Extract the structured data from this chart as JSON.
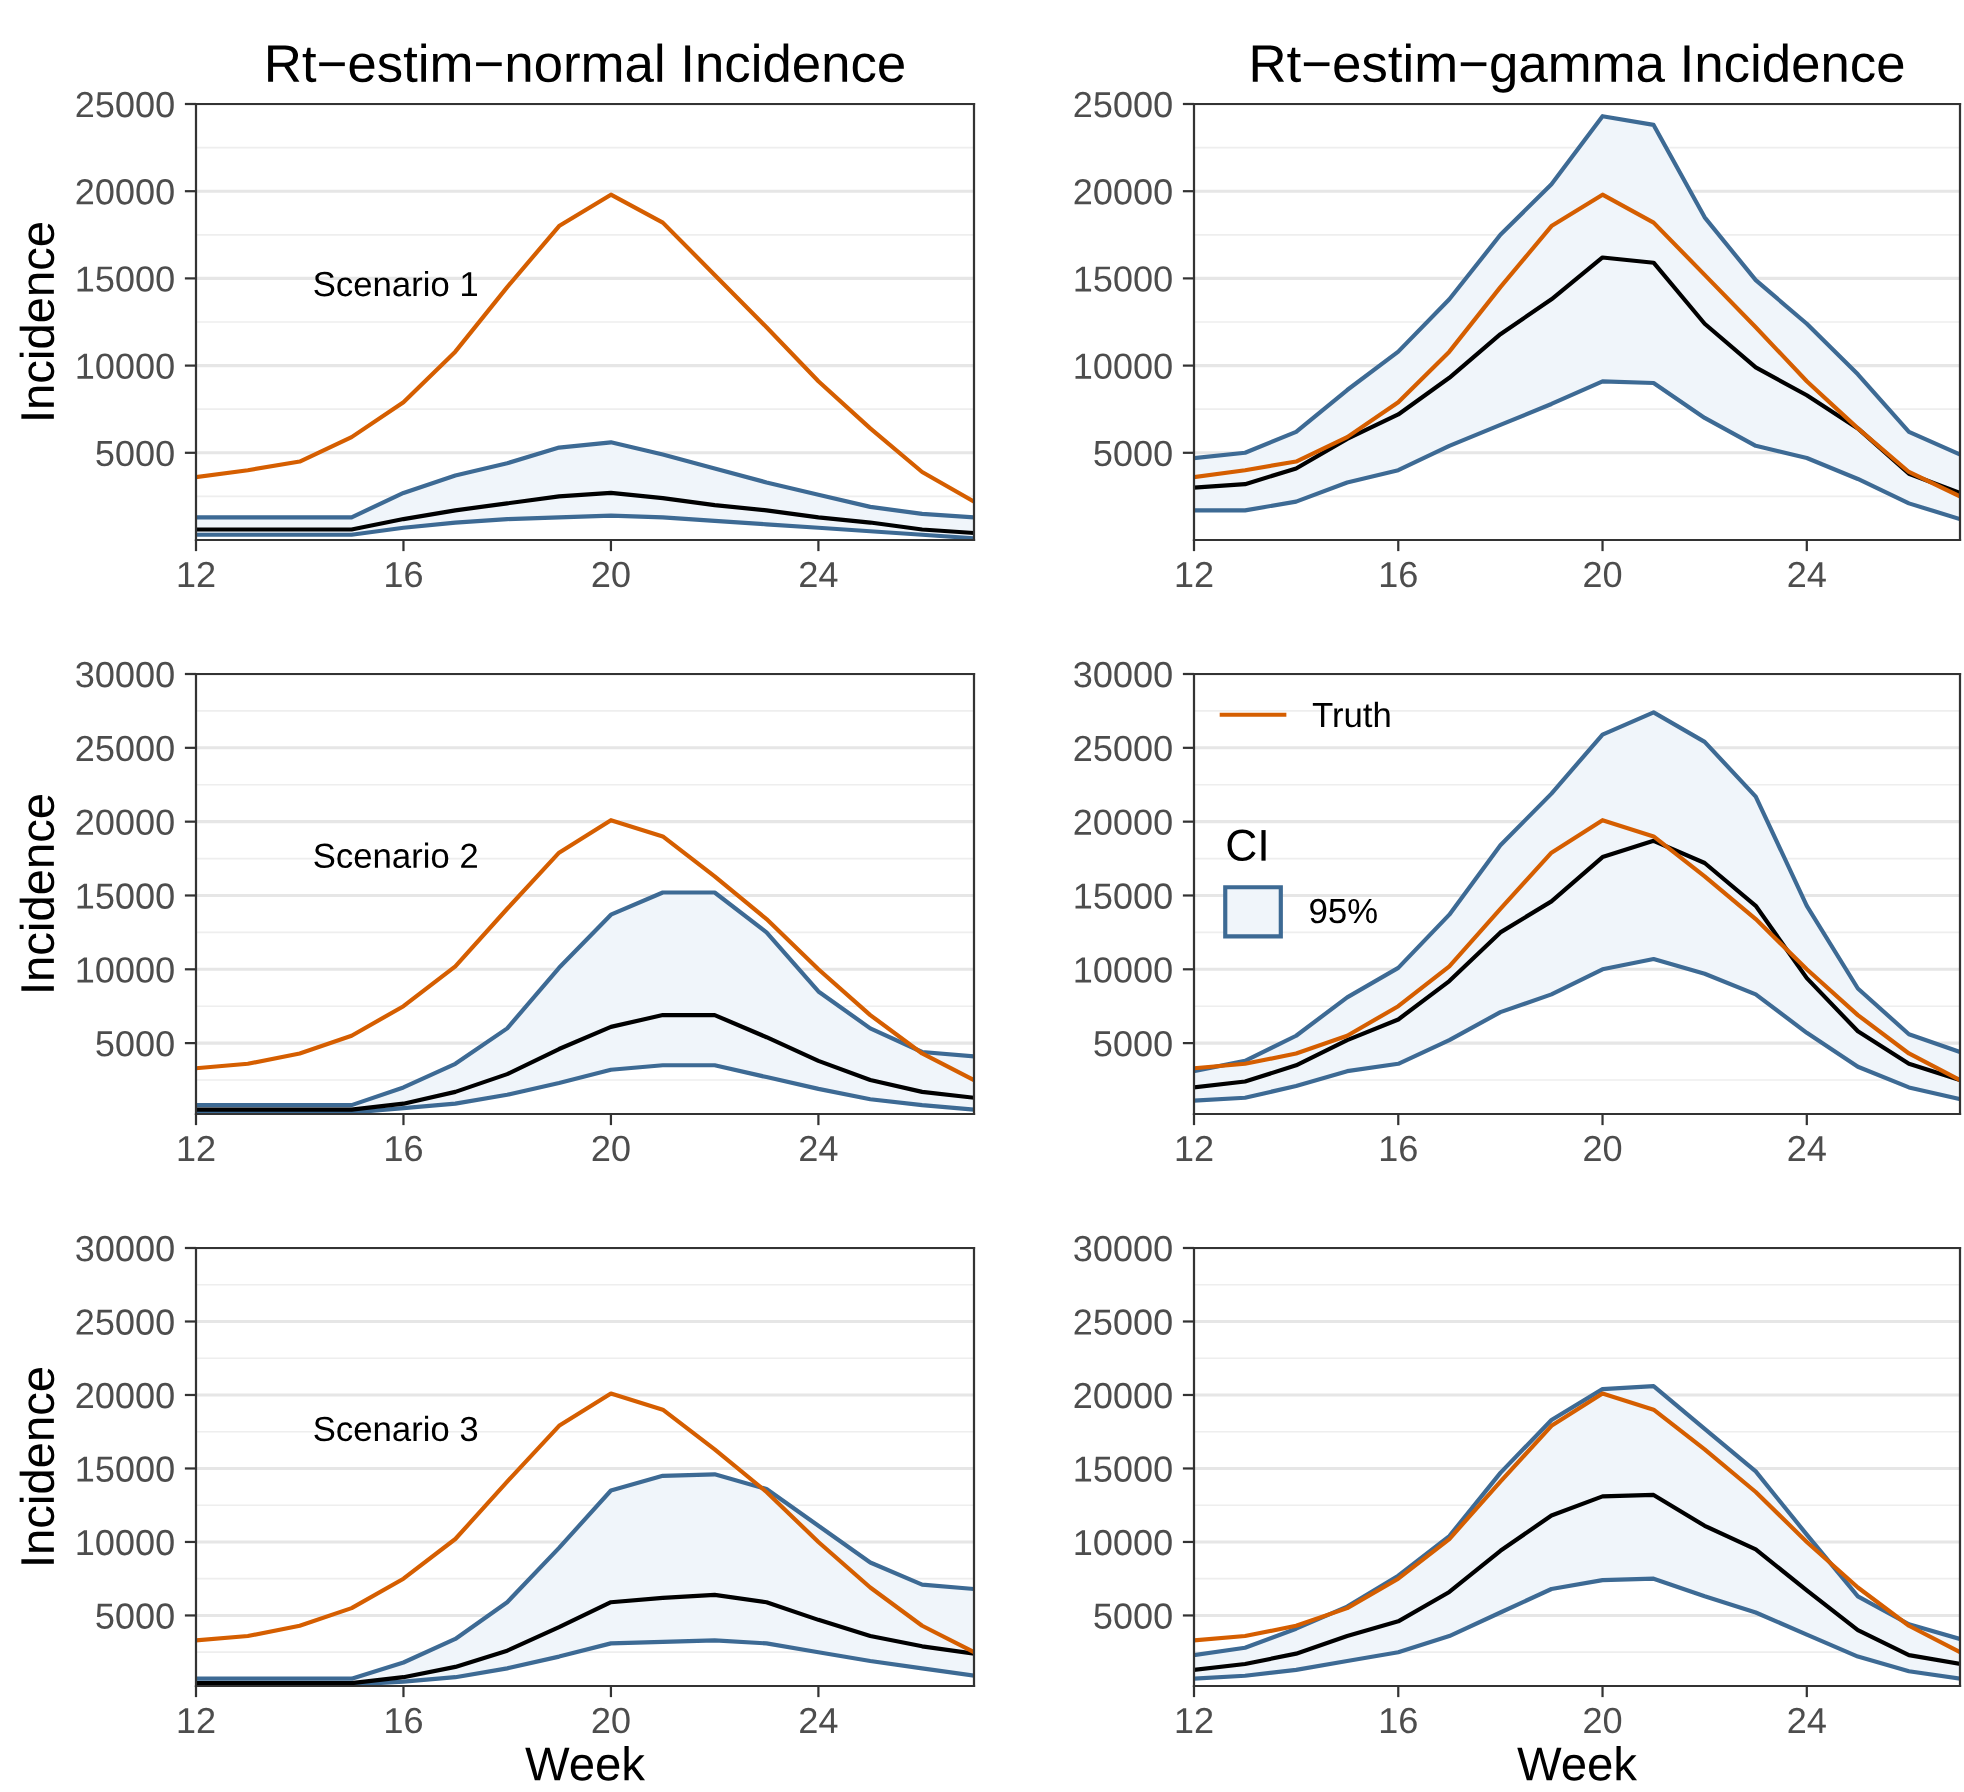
{
  "chart_data": [
    {
      "type": "line",
      "title": "Rt−estim−normal Incidence",
      "ylabel": "Incidence",
      "annotations": [
        "Scenario 1"
      ],
      "x": [
        12,
        13,
        14,
        15,
        16,
        17,
        18,
        19,
        20,
        21,
        22,
        23,
        24,
        25,
        26,
        27
      ],
      "xlim": [
        12,
        27
      ],
      "xticks": [
        12,
        16,
        20,
        24
      ],
      "ylim": [
        0,
        25000
      ],
      "yticks": [
        5000,
        10000,
        15000,
        20000,
        25000
      ],
      "grid": "y",
      "series": [
        {
          "color": "#3d6a94",
          "values": [
            1300,
            1300,
            1300,
            1300,
            2700,
            3700,
            4400,
            5300,
            5600,
            4900,
            4100,
            3300,
            2600,
            1900,
            1500,
            1300
          ]
        },
        {
          "color": "#3d6a94",
          "values": [
            300,
            300,
            300,
            300,
            700,
            1000,
            1200,
            1300,
            1400,
            1300,
            1100,
            900,
            700,
            500,
            300,
            100
          ]
        },
        {
          "color": "#000000",
          "values": [
            600,
            600,
            600,
            600,
            1200,
            1700,
            2100,
            2500,
            2700,
            2400,
            2000,
            1700,
            1300,
            1000,
            600,
            400
          ],
          "lower": [
            300,
            300,
            300,
            300,
            700,
            1000,
            1200,
            1300,
            1400,
            1300,
            1100,
            900,
            700,
            500,
            300,
            100
          ],
          "upper": [
            1300,
            1300,
            1300,
            1300,
            2700,
            3700,
            4400,
            5300,
            5600,
            4900,
            4100,
            3300,
            2600,
            1900,
            1500,
            1300
          ]
        },
        {
          "color": "#d55e00",
          "values": [
            3600,
            4000,
            4500,
            5900,
            7900,
            10800,
            14500,
            18000,
            19800,
            18200,
            15200,
            12200,
            9100,
            6400,
            3900,
            2200
          ]
        }
      ]
    },
    {
      "type": "line",
      "title": "Rt−estim−gamma Incidence",
      "x": [
        12,
        13,
        14,
        15,
        16,
        17,
        18,
        19,
        20,
        21,
        22,
        23,
        24,
        25,
        26,
        27
      ],
      "xlim": [
        12,
        27
      ],
      "xticks": [
        12,
        16,
        20,
        24
      ],
      "ylim": [
        0,
        25000
      ],
      "yticks": [
        5000,
        10000,
        15000,
        20000,
        25000
      ],
      "grid": "y",
      "series": [
        {
          "color": "#3d6a94",
          "values": [
            4700,
            5000,
            6200,
            8600,
            10800,
            13800,
            17500,
            20400,
            24300,
            23800,
            18500,
            14900,
            12400,
            9500,
            6200,
            4900
          ]
        },
        {
          "color": "#3d6a94",
          "values": [
            1700,
            1700,
            2200,
            3300,
            4000,
            5400,
            6600,
            7800,
            9100,
            9000,
            7000,
            5400,
            4700,
            3500,
            2100,
            1200
          ]
        },
        {
          "color": "#000000",
          "values": [
            3000,
            3200,
            4100,
            5800,
            7200,
            9300,
            11800,
            13800,
            16200,
            15900,
            12400,
            9900,
            8300,
            6400,
            3800,
            2700
          ],
          "lower": [
            1700,
            1700,
            2200,
            3300,
            4000,
            5400,
            6600,
            7800,
            9100,
            9000,
            7000,
            5400,
            4700,
            3500,
            2100,
            1200
          ],
          "upper": [
            4700,
            5000,
            6200,
            8600,
            10800,
            13800,
            17500,
            20400,
            24300,
            23800,
            18500,
            14900,
            12400,
            9500,
            6200,
            4900
          ]
        },
        {
          "color": "#d55e00",
          "values": [
            3600,
            4000,
            4500,
            5900,
            7900,
            10800,
            14500,
            18000,
            19800,
            18200,
            15200,
            12200,
            9100,
            6400,
            3900,
            2500
          ]
        }
      ]
    },
    {
      "type": "line",
      "ylabel": "Incidence",
      "annotations": [
        "Scenario 2"
      ],
      "x": [
        12,
        13,
        14,
        15,
        16,
        17,
        18,
        19,
        20,
        21,
        22,
        23,
        24,
        25,
        26,
        27
      ],
      "xlim": [
        12,
        27
      ],
      "xticks": [
        12,
        16,
        20,
        24
      ],
      "ylim": [
        200,
        30000
      ],
      "yticks": [
        5000,
        10000,
        15000,
        20000,
        25000,
        30000
      ],
      "grid": "y",
      "series": [
        {
          "color": "#3d6a94",
          "values": [
            800,
            800,
            800,
            800,
            2000,
            3600,
            6000,
            10100,
            13700,
            15200,
            15200,
            12500,
            8500,
            6000,
            4400,
            4100
          ]
        },
        {
          "color": "#3d6a94",
          "values": [
            300,
            300,
            300,
            300,
            600,
            900,
            1500,
            2300,
            3200,
            3500,
            3500,
            2700,
            1900,
            1200,
            800,
            500
          ]
        },
        {
          "color": "#000000",
          "values": [
            500,
            500,
            500,
            500,
            900,
            1700,
            2900,
            4600,
            6100,
            6900,
            6900,
            5400,
            3800,
            2500,
            1700,
            1300
          ],
          "lower": [
            300,
            300,
            300,
            300,
            600,
            900,
            1500,
            2300,
            3200,
            3500,
            3500,
            2700,
            1900,
            1200,
            800,
            500
          ],
          "upper": [
            800,
            800,
            800,
            800,
            2000,
            3600,
            6000,
            10100,
            13700,
            15200,
            15200,
            12500,
            8500,
            6000,
            4400,
            4100
          ]
        },
        {
          "color": "#d55e00",
          "values": [
            3300,
            3600,
            4300,
            5500,
            7500,
            10200,
            14100,
            17900,
            20100,
            19000,
            16300,
            13400,
            10000,
            6900,
            4300,
            2500
          ]
        }
      ]
    },
    {
      "type": "line",
      "legend": "top left",
      "legend_title": "CI",
      "x": [
        12,
        13,
        14,
        15,
        16,
        17,
        18,
        19,
        20,
        21,
        22,
        23,
        24,
        25,
        26,
        27
      ],
      "xlim": [
        12,
        27
      ],
      "xticks": [
        12,
        16,
        20,
        24
      ],
      "ylim": [
        200,
        30000
      ],
      "yticks": [
        5000,
        10000,
        15000,
        20000,
        25000,
        30000
      ],
      "grid": "y",
      "series": [
        {
          "name": "95%",
          "color": "#3d6a94",
          "values": [
            3100,
            3800,
            5500,
            8100,
            10100,
            13700,
            18400,
            21900,
            25900,
            27400,
            25400,
            21700,
            14300,
            8700,
            5600,
            4400
          ]
        },
        {
          "color": "#3d6a94",
          "values": [
            1100,
            1300,
            2100,
            3100,
            3600,
            5200,
            7100,
            8300,
            10000,
            10700,
            9700,
            8300,
            5700,
            3400,
            2000,
            1200
          ]
        },
        {
          "color": "#000000",
          "values": [
            2000,
            2400,
            3500,
            5200,
            6600,
            9200,
            12500,
            14600,
            17600,
            18700,
            17200,
            14300,
            9400,
            5800,
            3600,
            2500
          ],
          "lower": [
            1100,
            1300,
            2100,
            3100,
            3600,
            5200,
            7100,
            8300,
            10000,
            10700,
            9700,
            8300,
            5700,
            3400,
            2000,
            1200
          ],
          "upper": [
            3100,
            3800,
            5500,
            8100,
            10100,
            13700,
            18400,
            21900,
            25900,
            27400,
            25400,
            21700,
            14300,
            8700,
            5600,
            4400
          ]
        },
        {
          "name": "Truth",
          "color": "#d55e00",
          "values": [
            3300,
            3600,
            4300,
            5500,
            7500,
            10200,
            14100,
            17900,
            20100,
            19000,
            16300,
            13400,
            10000,
            6900,
            4300,
            2500
          ]
        }
      ]
    },
    {
      "type": "line",
      "ylabel": "Incidence",
      "xlabel": "Week",
      "annotations": [
        "Scenario 3"
      ],
      "x": [
        12,
        13,
        14,
        15,
        16,
        17,
        18,
        19,
        20,
        21,
        22,
        23,
        24,
        25,
        26,
        27
      ],
      "xlim": [
        12,
        27
      ],
      "xticks": [
        12,
        16,
        20,
        24
      ],
      "ylim": [
        200,
        30000
      ],
      "yticks": [
        5000,
        10000,
        15000,
        20000,
        25000,
        30000
      ],
      "grid": "y",
      "series": [
        {
          "color": "#3d6a94",
          "values": [
            700,
            700,
            700,
            700,
            1800,
            3400,
            5900,
            9600,
            13500,
            14500,
            14600,
            13600,
            11100,
            8600,
            7100,
            6800
          ]
        },
        {
          "color": "#3d6a94",
          "values": [
            300,
            300,
            300,
            300,
            500,
            800,
            1400,
            2200,
            3100,
            3200,
            3300,
            3100,
            2500,
            1900,
            1400,
            900
          ]
        },
        {
          "color": "#000000",
          "values": [
            400,
            400,
            400,
            400,
            800,
            1500,
            2600,
            4200,
            5900,
            6200,
            6400,
            5900,
            4700,
            3600,
            2900,
            2400
          ],
          "lower": [
            300,
            300,
            300,
            300,
            500,
            800,
            1400,
            2200,
            3100,
            3200,
            3300,
            3100,
            2500,
            1900,
            1400,
            900
          ],
          "upper": [
            700,
            700,
            700,
            700,
            1800,
            3400,
            5900,
            9600,
            13500,
            14500,
            14600,
            13600,
            11100,
            8600,
            7100,
            6800
          ]
        },
        {
          "color": "#d55e00",
          "values": [
            3300,
            3600,
            4300,
            5500,
            7500,
            10200,
            14100,
            17900,
            20100,
            19000,
            16300,
            13400,
            10000,
            6900,
            4300,
            2500
          ]
        }
      ]
    },
    {
      "type": "line",
      "xlabel": "Week",
      "x": [
        12,
        13,
        14,
        15,
        16,
        17,
        18,
        19,
        20,
        21,
        22,
        23,
        24,
        25,
        26,
        27
      ],
      "xlim": [
        12,
        27
      ],
      "xticks": [
        12,
        16,
        20,
        24
      ],
      "ylim": [
        200,
        30000
      ],
      "yticks": [
        5000,
        10000,
        15000,
        20000,
        25000,
        30000
      ],
      "grid": "y",
      "series": [
        {
          "color": "#3d6a94",
          "values": [
            2300,
            2800,
            4100,
            5600,
            7700,
            10400,
            14700,
            18300,
            20400,
            20600,
            17700,
            14800,
            10500,
            6300,
            4400,
            3400
          ]
        },
        {
          "color": "#3d6a94",
          "values": [
            700,
            900,
            1300,
            1900,
            2500,
            3600,
            5200,
            6800,
            7400,
            7500,
            6300,
            5200,
            3700,
            2200,
            1200,
            700
          ]
        },
        {
          "color": "#000000",
          "values": [
            1300,
            1700,
            2400,
            3600,
            4600,
            6600,
            9400,
            11800,
            13100,
            13200,
            11100,
            9500,
            6700,
            4000,
            2300,
            1700
          ],
          "lower": [
            700,
            900,
            1300,
            1900,
            2500,
            3600,
            5200,
            6800,
            7400,
            7500,
            6300,
            5200,
            3700,
            2200,
            1200,
            700
          ],
          "upper": [
            2300,
            2800,
            4100,
            5600,
            7700,
            10400,
            14700,
            18300,
            20400,
            20600,
            17700,
            14800,
            10500,
            6300,
            4400,
            3400
          ]
        },
        {
          "color": "#d55e00",
          "values": [
            3300,
            3600,
            4300,
            5500,
            7500,
            10200,
            14100,
            17900,
            20100,
            19000,
            16300,
            13400,
            10000,
            6900,
            4300,
            2500
          ]
        }
      ]
    }
  ]
}
